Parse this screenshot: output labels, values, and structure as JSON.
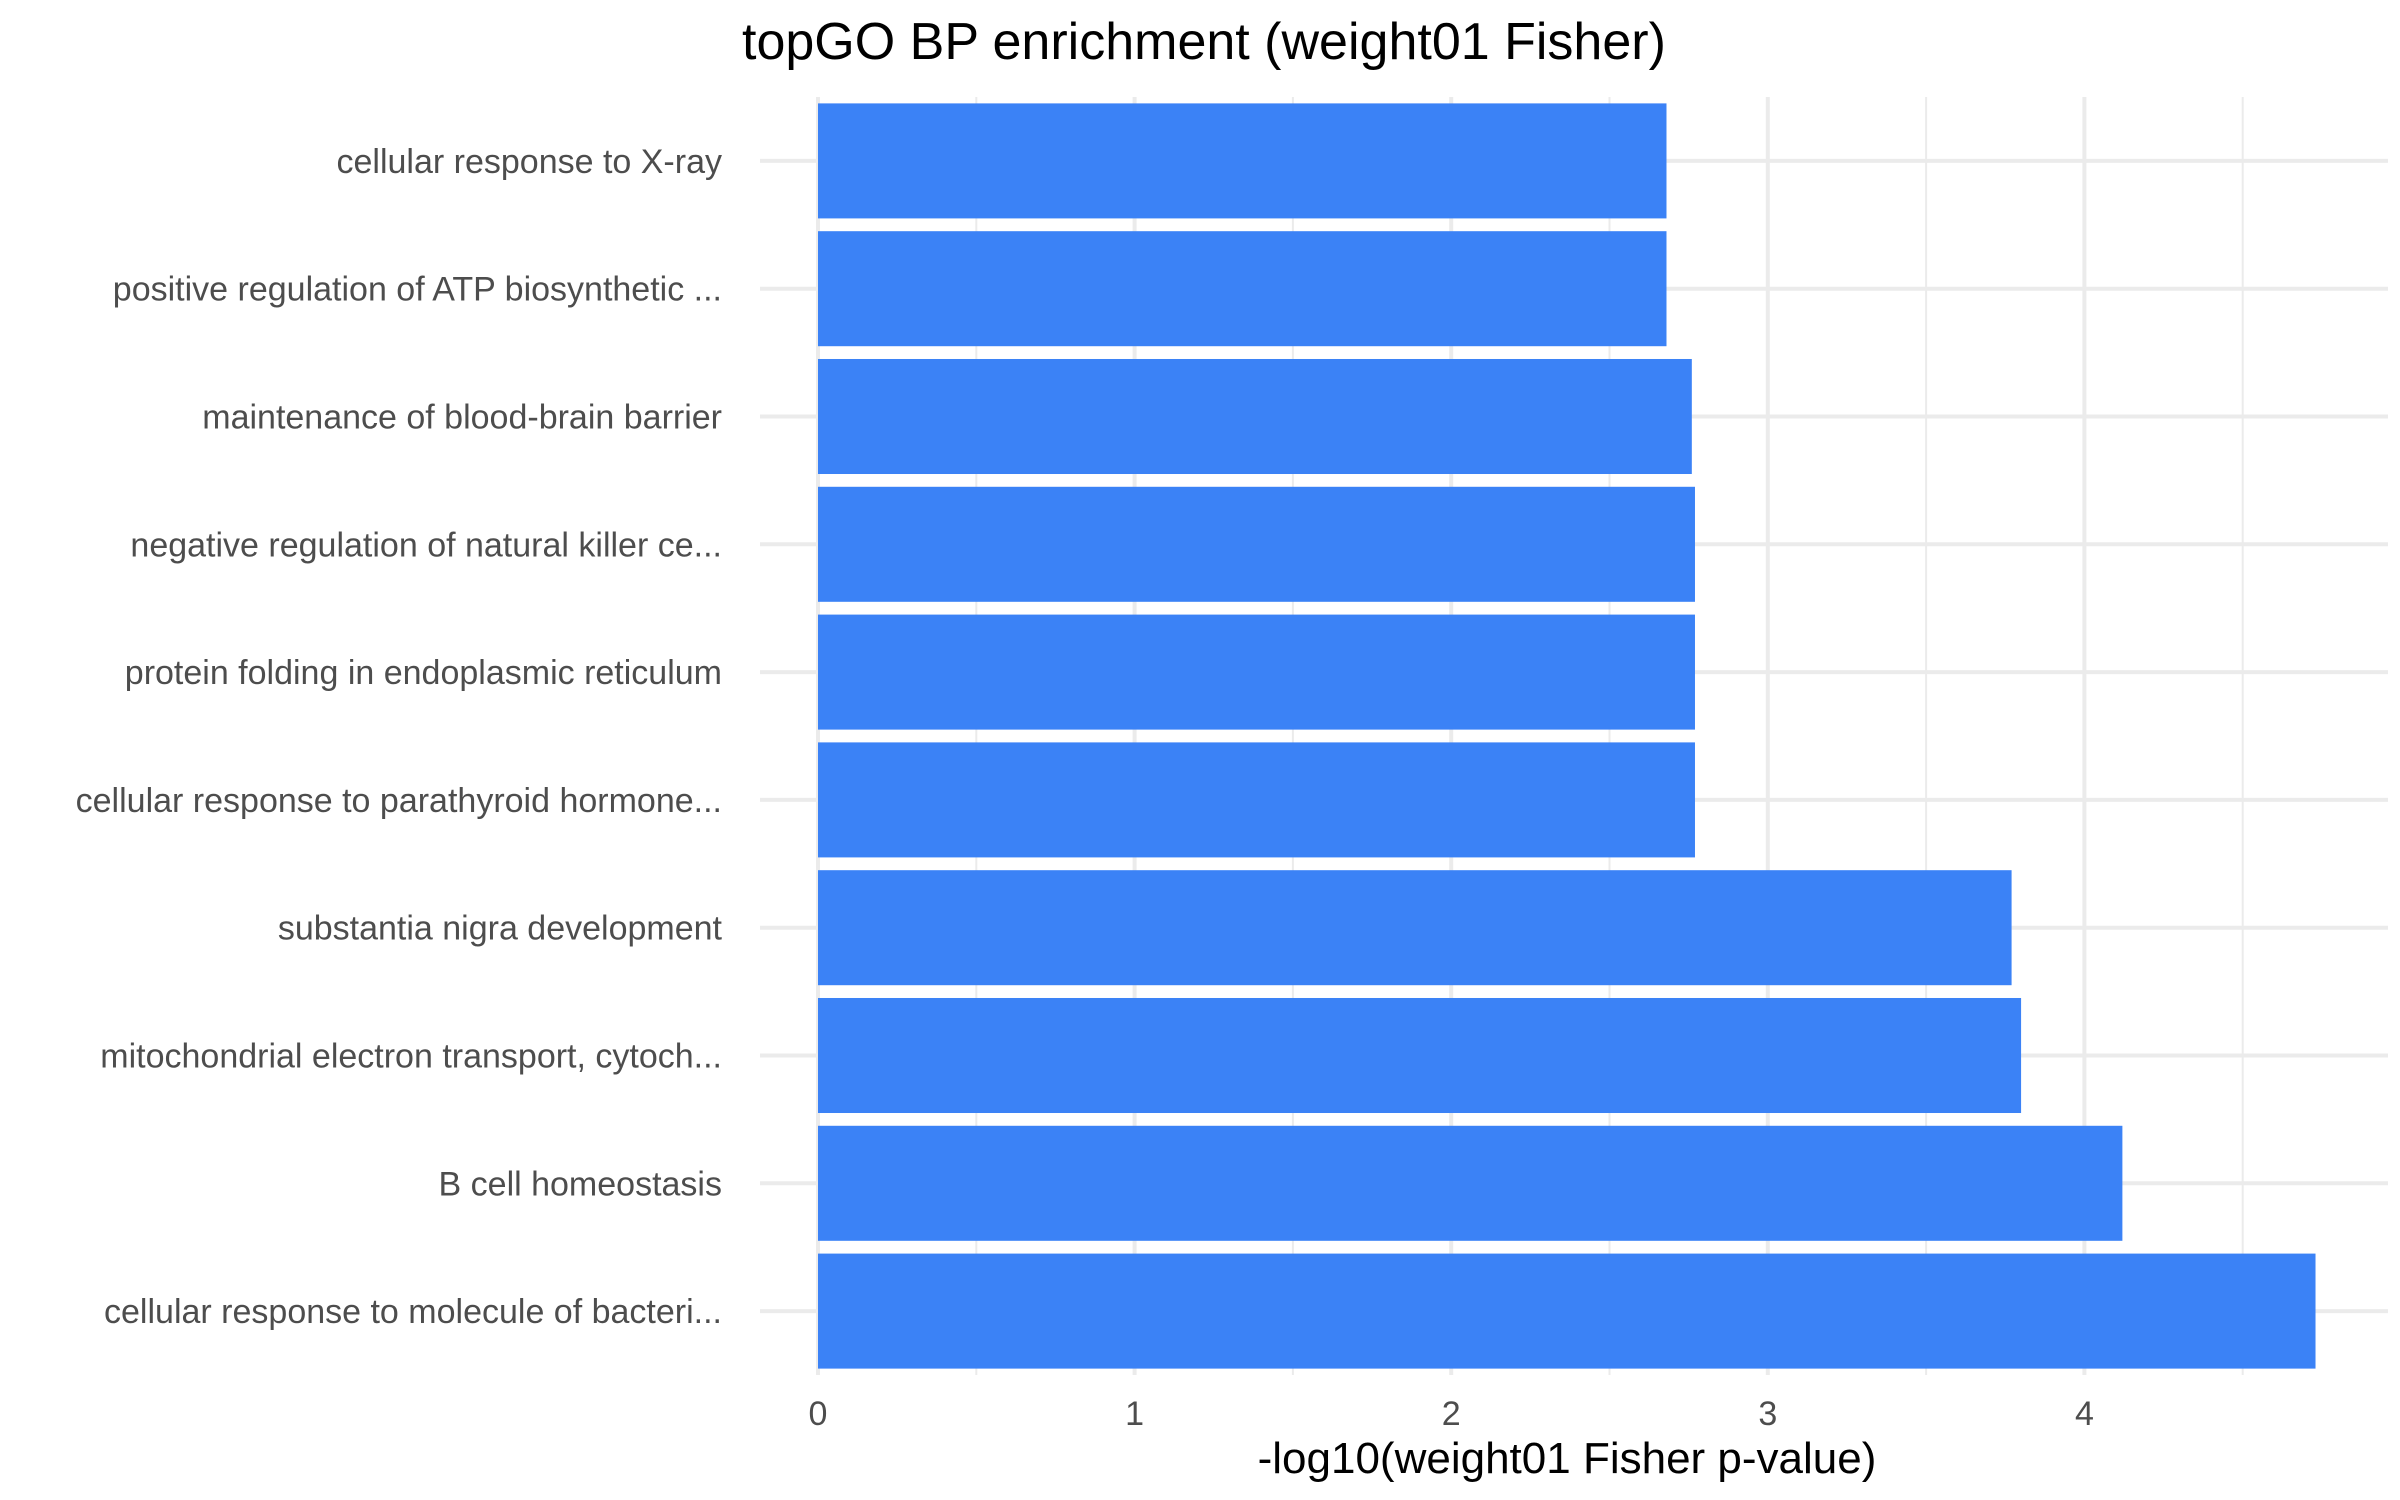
{
  "chart_data": {
    "type": "bar",
    "orientation": "horizontal",
    "title": "topGO BP enrichment (weight01 Fisher)",
    "xlabel": "-log10(weight01 Fisher p-value)",
    "ylabel": "",
    "xlim": [
      0,
      4.95
    ],
    "x_ticks": [
      0,
      1,
      2,
      3,
      4
    ],
    "grid": true,
    "legend": "none",
    "bar_color": "#3b82f6",
    "categories": [
      "cellular response to X-ray",
      "positive regulation of ATP biosynthetic ...",
      "maintenance of blood-brain barrier",
      "negative regulation of natural killer ce...",
      "protein folding in endoplasmic reticulum",
      "cellular response to parathyroid hormone...",
      "substantia nigra development",
      "mitochondrial electron transport, cytoch...",
      "B cell homeostasis",
      "cellular response to molecule of bacteri..."
    ],
    "values": [
      2.68,
      2.68,
      2.76,
      2.77,
      2.77,
      2.77,
      3.77,
      3.8,
      4.12,
      4.73
    ]
  }
}
